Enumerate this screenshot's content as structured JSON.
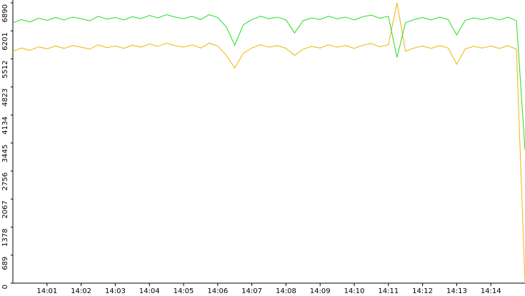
{
  "chart_data": {
    "type": "line",
    "x": [
      840,
      840.25,
      840.5,
      840.75,
      841,
      841.25,
      841.5,
      841.75,
      842,
      842.25,
      842.5,
      842.75,
      843,
      843.25,
      843.5,
      843.75,
      844,
      844.25,
      844.5,
      844.75,
      845,
      845.25,
      845.5,
      845.75,
      846,
      846.25,
      846.5,
      846.75,
      847,
      847.25,
      847.5,
      847.75,
      848,
      848.25,
      848.5,
      848.75,
      849,
      849.25,
      849.5,
      849.75,
      850,
      850.25,
      850.5,
      850.75,
      851,
      851.25,
      851.5,
      851.75,
      852,
      852.25,
      852.5,
      852.75,
      853,
      853.25,
      853.5,
      853.75,
      854,
      854.25,
      854.5,
      854.75,
      855
    ],
    "series": [
      {
        "color": "#22dd22",
        "values": [
          6400,
          6480,
          6420,
          6510,
          6460,
          6530,
          6470,
          6540,
          6500,
          6450,
          6560,
          6490,
          6530,
          6470,
          6550,
          6500,
          6580,
          6520,
          6600,
          6540,
          6500,
          6560,
          6480,
          6600,
          6530,
          6300,
          5850,
          6350,
          6480,
          6560,
          6500,
          6540,
          6470,
          6150,
          6450,
          6520,
          6480,
          6560,
          6500,
          6540,
          6470,
          6550,
          6590,
          6510,
          6560,
          5550,
          6400,
          6480,
          6530,
          6470,
          6540,
          6480,
          6100,
          6460,
          6520,
          6480,
          6530,
          6470,
          6540,
          6450,
          3270
        ]
      },
      {
        "color": "#f0b400",
        "values": [
          5700,
          5780,
          5720,
          5810,
          5760,
          5830,
          5770,
          5840,
          5800,
          5750,
          5860,
          5790,
          5830,
          5770,
          5850,
          5800,
          5880,
          5820,
          5900,
          5840,
          5800,
          5860,
          5780,
          5900,
          5830,
          5600,
          5290,
          5650,
          5780,
          5860,
          5800,
          5840,
          5770,
          5600,
          5750,
          5820,
          5780,
          5860,
          5800,
          5840,
          5770,
          5850,
          5890,
          5810,
          5860,
          6890,
          5700,
          5780,
          5830,
          5770,
          5840,
          5780,
          5380,
          5760,
          5820,
          5780,
          5830,
          5770,
          5840,
          5750,
          0
        ]
      }
    ],
    "xlim": [
      840,
      855
    ],
    "xticks": [
      {
        "value": 841,
        "label": "14:01"
      },
      {
        "value": 842,
        "label": "14:02"
      },
      {
        "value": 843,
        "label": "14:03"
      },
      {
        "value": 844,
        "label": "14:04"
      },
      {
        "value": 845,
        "label": "14:05"
      },
      {
        "value": 846,
        "label": "14:06"
      },
      {
        "value": 847,
        "label": "14:07"
      },
      {
        "value": 848,
        "label": "14:08"
      },
      {
        "value": 849,
        "label": "14:09"
      },
      {
        "value": 850,
        "label": "14:10"
      },
      {
        "value": 851,
        "label": "14:11"
      },
      {
        "value": 852,
        "label": "14:12"
      },
      {
        "value": 853,
        "label": "14:13"
      },
      {
        "value": 854,
        "label": "14:14"
      }
    ],
    "ylim": [
      0,
      6890
    ],
    "yticks": [
      0,
      689,
      1378,
      2067,
      2756,
      3445,
      4134,
      4823,
      5512,
      6201,
      6890
    ]
  }
}
